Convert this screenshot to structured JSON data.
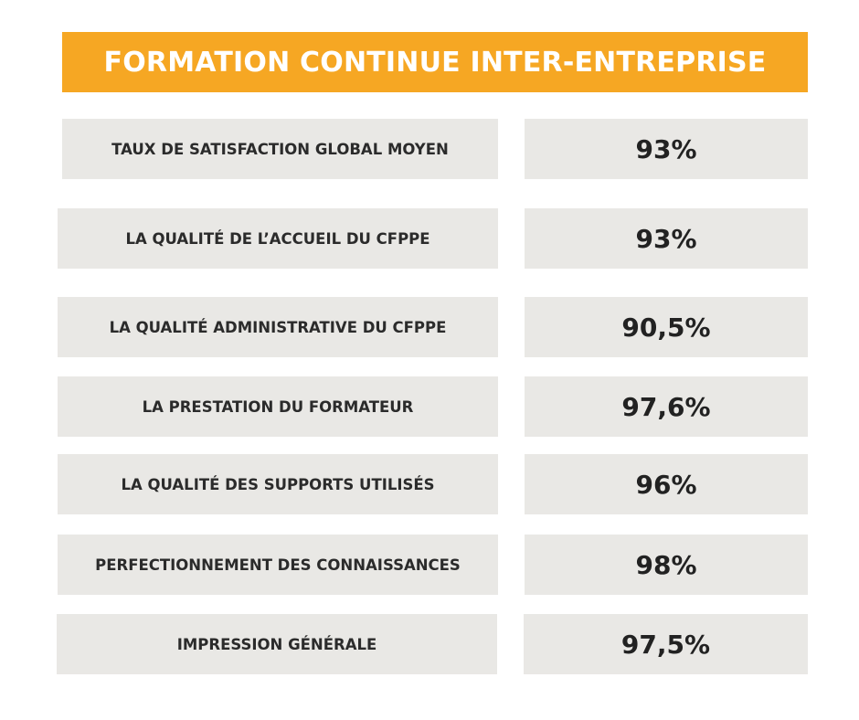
{
  "header": {
    "title": "FORMATION CONTINUE INTER-ENTREPRISE"
  },
  "rows": [
    {
      "label": "TAUX DE SATISFACTION GLOBAL MOYEN",
      "value": "93%"
    },
    {
      "label": "LA QUALITÉ DE L’ACCUEIL DU CFPPE",
      "value": "93%"
    },
    {
      "label": "LA QUALITÉ ADMINISTRATIVE DU CFPPE",
      "value": "90,5%"
    },
    {
      "label": "LA PRESTATION DU FORMATEUR",
      "value": "97,6%"
    },
    {
      "label": "LA QUALITÉ DES SUPPORTS UTILISÉS",
      "value": "96%"
    },
    {
      "label": "PERFECTIONNEMENT DES CONNAISSANCES",
      "value": "98%"
    },
    {
      "label": "IMPRESSION GÉNÉRALE",
      "value": "97,5%"
    }
  ],
  "colors": {
    "header_background": "#f6a723",
    "header_text": "#ffffff",
    "cell_background": "#e9e8e5",
    "cell_text": "#222222"
  }
}
